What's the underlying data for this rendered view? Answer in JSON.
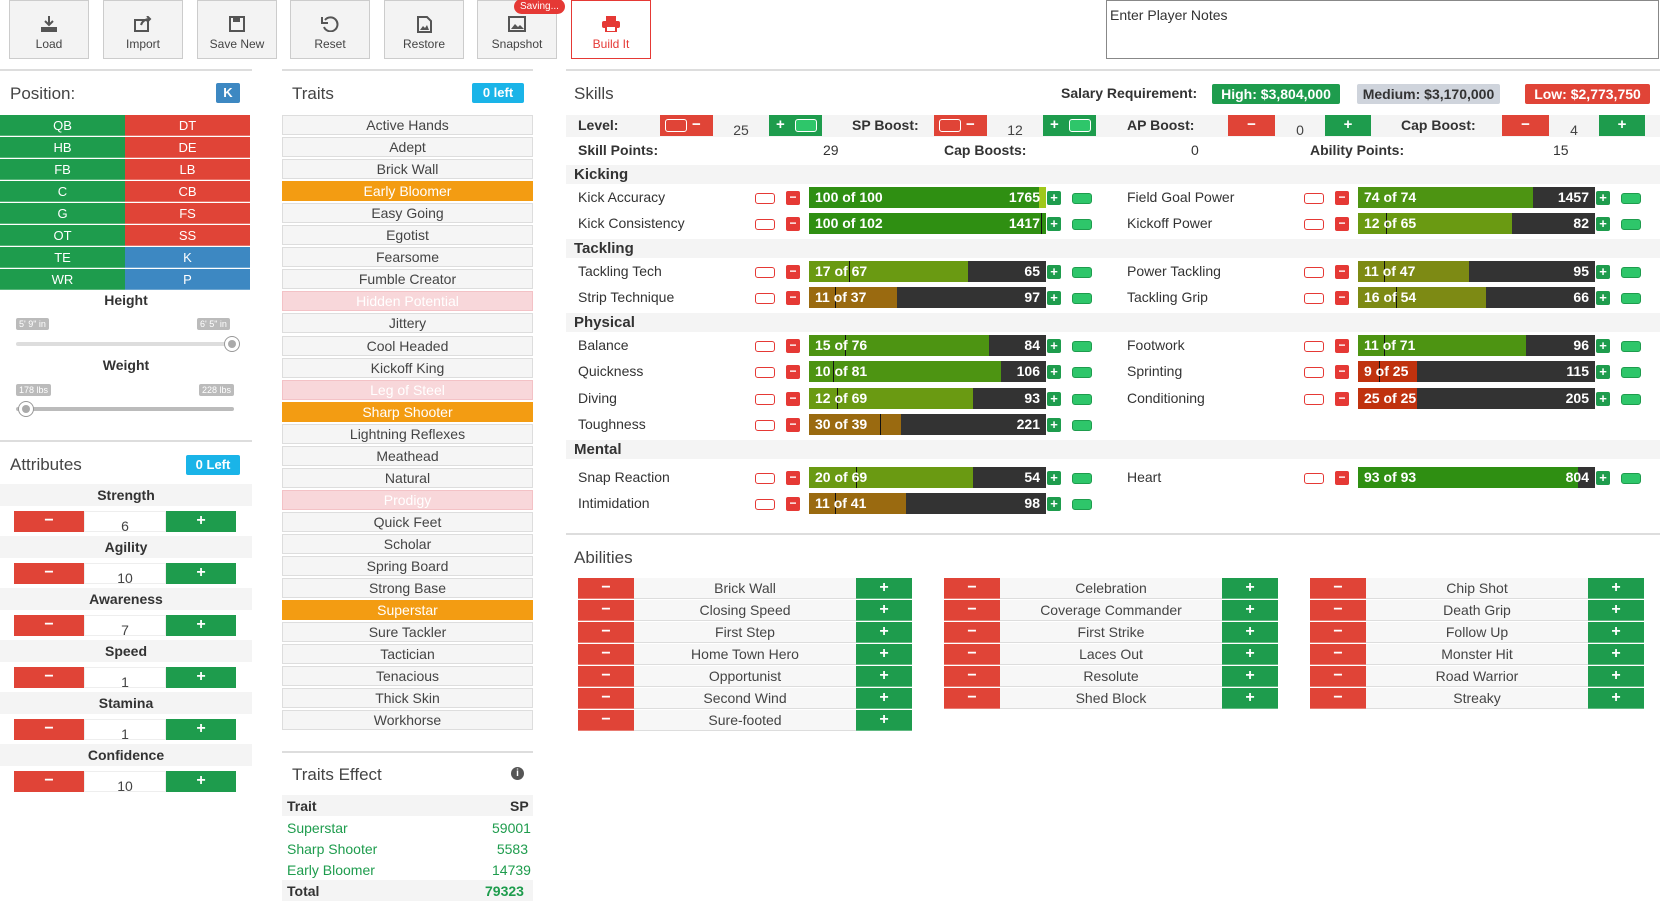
{
  "toolbar": {
    "load": "Load",
    "import": "Import",
    "save_new": "Save New",
    "reset": "Reset",
    "restore": "Restore",
    "snapshot": "Snapshot",
    "saving": "Saving...",
    "build": "Build It"
  },
  "notes": {
    "placeholder": "Enter Player Notes"
  },
  "position": {
    "title": "Position:",
    "selected": "K",
    "left": [
      "QB",
      "HB",
      "FB",
      "C",
      "G",
      "OT",
      "TE",
      "WR"
    ],
    "right": [
      "DT",
      "DE",
      "LB",
      "CB",
      "FS",
      "SS",
      "K",
      "P"
    ]
  },
  "height": {
    "label": "Height",
    "min": "5' 9\" in",
    "max": "6' 5\" in",
    "value_fraction": 1.0
  },
  "weight": {
    "label": "Weight",
    "min": "178 lbs",
    "max": "228 lbs",
    "value_fraction": 0.0
  },
  "attributes": {
    "title": "Attributes",
    "left": "0 Left",
    "items": [
      {
        "name": "Strength",
        "value": "6"
      },
      {
        "name": "Agility",
        "value": "10"
      },
      {
        "name": "Awareness",
        "value": "7"
      },
      {
        "name": "Speed",
        "value": "1"
      },
      {
        "name": "Stamina",
        "value": "1"
      },
      {
        "name": "Confidence",
        "value": "10"
      }
    ]
  },
  "traits": {
    "title": "Traits",
    "left": "0 left",
    "items": [
      {
        "name": "Active Hands",
        "state": "normal"
      },
      {
        "name": "Adept",
        "state": "normal"
      },
      {
        "name": "Brick Wall",
        "state": "normal"
      },
      {
        "name": "Early Bloomer",
        "state": "selected"
      },
      {
        "name": "Easy Going",
        "state": "normal"
      },
      {
        "name": "Egotist",
        "state": "normal"
      },
      {
        "name": "Fearsome",
        "state": "normal"
      },
      {
        "name": "Fumble Creator",
        "state": "normal"
      },
      {
        "name": "Hidden Potential",
        "state": "disabled"
      },
      {
        "name": "Jittery",
        "state": "normal"
      },
      {
        "name": "Cool Headed",
        "state": "normal"
      },
      {
        "name": "Kickoff King",
        "state": "normal"
      },
      {
        "name": "Leg of Steel",
        "state": "disabled"
      },
      {
        "name": "Sharp Shooter",
        "state": "selected"
      },
      {
        "name": "Lightning Reflexes",
        "state": "normal"
      },
      {
        "name": "Meathead",
        "state": "normal"
      },
      {
        "name": "Natural",
        "state": "normal"
      },
      {
        "name": "Prodigy",
        "state": "disabled"
      },
      {
        "name": "Quick Feet",
        "state": "normal"
      },
      {
        "name": "Scholar",
        "state": "normal"
      },
      {
        "name": "Spring Board",
        "state": "normal"
      },
      {
        "name": "Strong Base",
        "state": "normal"
      },
      {
        "name": "Superstar",
        "state": "selected"
      },
      {
        "name": "Sure Tackler",
        "state": "normal"
      },
      {
        "name": "Tactician",
        "state": "normal"
      },
      {
        "name": "Tenacious",
        "state": "normal"
      },
      {
        "name": "Thick Skin",
        "state": "normal"
      },
      {
        "name": "Workhorse",
        "state": "normal"
      }
    ]
  },
  "traits_effect": {
    "title": "Traits Effect",
    "col_trait": "Trait",
    "col_sp": "SP",
    "rows": [
      {
        "trait": "Superstar",
        "sp": "59001"
      },
      {
        "trait": "Sharp Shooter",
        "sp": "5583"
      },
      {
        "trait": "Early Bloomer",
        "sp": "14739"
      }
    ],
    "total_label": "Total",
    "total": "79323"
  },
  "skills": {
    "title": "Skills",
    "salary_label": "Salary Requirement:",
    "salary_high": "High: $3,804,000",
    "salary_medium": "Medium: $3,170,000",
    "salary_low": "Low: $2,773,750",
    "level_label": "Level:",
    "level": "25",
    "sp_boost_label": "SP Boost:",
    "sp_boost": "12",
    "ap_boost_label": "AP Boost:",
    "ap_boost": "0",
    "cap_boost_label": "Cap Boost:",
    "cap_boost": "4",
    "skill_points_label": "Skill Points:",
    "skill_points": "29",
    "cap_boosts_label": "Cap Boosts:",
    "cap_boosts": "0",
    "ability_points_label": "Ability Points:",
    "ability_points": "15",
    "categories": {
      "kicking": "Kicking",
      "tackling": "Tackling",
      "physical": "Physical",
      "mental": "Mental"
    },
    "rows": [
      {
        "name": "Kick Accuracy",
        "label": "100 of 100",
        "cost": "1765",
        "cur": 100,
        "cap": 100,
        "max": 100
      },
      {
        "name": "Field Goal Power",
        "label": "74 of 74",
        "cost": "1457",
        "cur": 74,
        "cap": 74,
        "max": 100
      },
      {
        "name": "Kick Consistency",
        "label": "100 of 102",
        "cost": "1417",
        "cur": 100,
        "cap": 102,
        "max": 102
      },
      {
        "name": "Kickoff Power",
        "label": "12 of 65",
        "cost": "82",
        "cur": 12,
        "cap": 65,
        "max": 100
      },
      {
        "name": "Tackling Tech",
        "label": "17 of 67",
        "cost": "65",
        "cur": 17,
        "cap": 67,
        "max": 100
      },
      {
        "name": "Power Tackling",
        "label": "11 of 47",
        "cost": "95",
        "cur": 11,
        "cap": 47,
        "max": 100
      },
      {
        "name": "Strip Technique",
        "label": "11 of 37",
        "cost": "97",
        "cur": 11,
        "cap": 37,
        "max": 100
      },
      {
        "name": "Tackling Grip",
        "label": "16 of 54",
        "cost": "66",
        "cur": 16,
        "cap": 54,
        "max": 100
      },
      {
        "name": "Balance",
        "label": "15 of 76",
        "cost": "84",
        "cur": 15,
        "cap": 76,
        "max": 100
      },
      {
        "name": "Footwork",
        "label": "11 of 71",
        "cost": "96",
        "cur": 11,
        "cap": 71,
        "max": 100
      },
      {
        "name": "Quickness",
        "label": "10 of 81",
        "cost": "106",
        "cur": 10,
        "cap": 81,
        "max": 100
      },
      {
        "name": "Sprinting",
        "label": "9 of 25",
        "cost": "115",
        "cur": 9,
        "cap": 25,
        "max": 100
      },
      {
        "name": "Diving",
        "label": "12 of 69",
        "cost": "93",
        "cur": 12,
        "cap": 69,
        "max": 100
      },
      {
        "name": "Conditioning",
        "label": "25 of 25",
        "cost": "205",
        "cur": 25,
        "cap": 25,
        "max": 100
      },
      {
        "name": "Toughness",
        "label": "30 of 39",
        "cost": "221",
        "cur": 30,
        "cap": 39,
        "max": 100
      },
      {
        "name": "Snap Reaction",
        "label": "20 of 69",
        "cost": "54",
        "cur": 20,
        "cap": 69,
        "max": 100
      },
      {
        "name": "Heart",
        "label": "93 of 93",
        "cost": "804",
        "cur": 93,
        "cap": 93,
        "max": 100
      },
      {
        "name": "Intimidation",
        "label": "11 of 41",
        "cost": "98",
        "cur": 11,
        "cap": 41,
        "max": 100
      }
    ]
  },
  "abilities": {
    "title": "Abilities",
    "col1": [
      "Brick Wall",
      "Closing Speed",
      "First Step",
      "Home Town Hero",
      "Opportunist",
      "Second Wind",
      "Sure-footed"
    ],
    "col2": [
      "Celebration",
      "Coverage Commander",
      "First Strike",
      "Laces Out",
      "Resolute",
      "Shed Block"
    ],
    "col3": [
      "Chip Shot",
      "Death Grip",
      "Follow Up",
      "Monster Hit",
      "Road Warrior",
      "Streaky"
    ]
  },
  "colors": {
    "green": "#1e9c4d",
    "red": "#e04437",
    "blue": "#3d88c2",
    "orange": "#f39c12",
    "cyan": "#1ab4e8"
  }
}
